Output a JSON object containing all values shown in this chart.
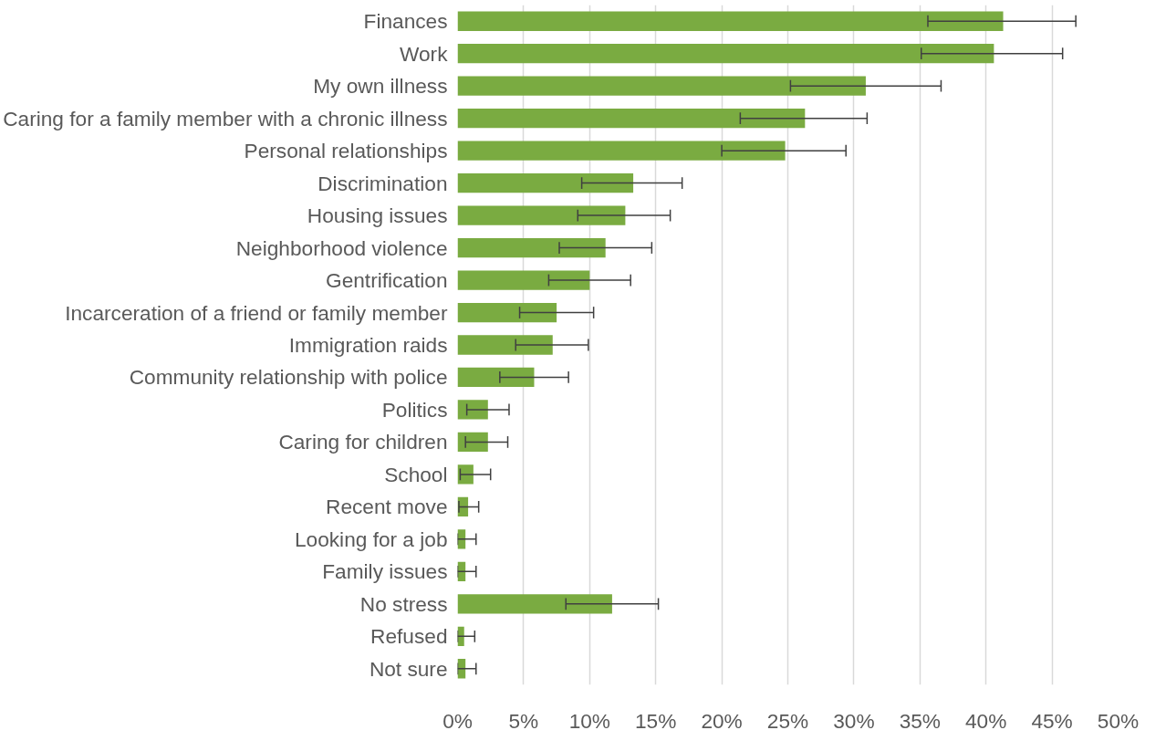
{
  "chart_data": {
    "type": "bar",
    "orientation": "horizontal",
    "categories": [
      "Finances",
      "Work",
      "My own illness",
      "Caring for a family member with a chronic illness",
      "Personal relationships",
      "Discrimination",
      "Housing issues",
      "Neighborhood violence",
      "Gentrification",
      "Incarceration of a friend or family member",
      "Immigration raids",
      "Community relationship with police",
      "Politics",
      "Caring for children",
      "School",
      "Recent move",
      "Looking for a job",
      "Family issues",
      "No stress",
      "Refused",
      "Not sure"
    ],
    "values": [
      0.413,
      0.406,
      0.309,
      0.263,
      0.248,
      0.133,
      0.127,
      0.112,
      0.1,
      0.075,
      0.072,
      0.058,
      0.023,
      0.023,
      0.012,
      0.008,
      0.006,
      0.006,
      0.117,
      0.005,
      0.006
    ],
    "errors": [
      [
        0.356,
        0.468
      ],
      [
        0.351,
        0.458
      ],
      [
        0.252,
        0.366
      ],
      [
        0.214,
        0.31
      ],
      [
        0.2,
        0.294
      ],
      [
        0.094,
        0.17
      ],
      [
        0.091,
        0.161
      ],
      [
        0.077,
        0.147
      ],
      [
        0.069,
        0.131
      ],
      [
        0.047,
        0.103
      ],
      [
        0.044,
        0.099
      ],
      [
        0.032,
        0.084
      ],
      [
        0.007,
        0.039
      ],
      [
        0.006,
        0.038
      ],
      [
        0.002,
        0.025
      ],
      [
        0.001,
        0.016
      ],
      [
        0.0,
        0.014
      ],
      [
        0.0,
        0.014
      ],
      [
        0.082,
        0.152
      ],
      [
        0.0,
        0.013
      ],
      [
        0.0,
        0.014
      ]
    ],
    "color": "#7aab41",
    "xlim": [
      0,
      0.5
    ],
    "xticks": [
      {
        "value": 0,
        "label": "0%"
      },
      {
        "value": 0.05,
        "label": "5%"
      },
      {
        "value": 0.1,
        "label": "10%"
      },
      {
        "value": 0.15,
        "label": "15%"
      },
      {
        "value": 0.2,
        "label": "20%"
      },
      {
        "value": 0.25,
        "label": "25%"
      },
      {
        "value": 0.3,
        "label": "30%"
      },
      {
        "value": 0.35,
        "label": "35%"
      },
      {
        "value": 0.4,
        "label": "40%"
      },
      {
        "value": 0.45,
        "label": "45%"
      },
      {
        "value": 0.5,
        "label": "50%"
      }
    ],
    "grid": "x"
  }
}
